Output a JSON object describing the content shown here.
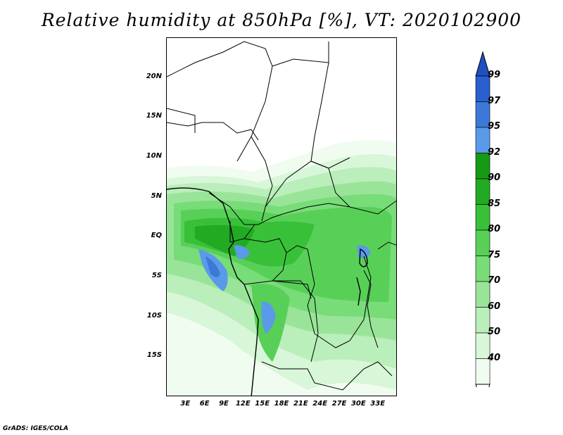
{
  "title": "Relative humidity at 850hPa [%], VT: 2020102900",
  "credit": "GrADS: IGES/COLA",
  "map": {
    "lon_range": [
      0,
      36
    ],
    "lat_range": [
      -20,
      25
    ],
    "lat_ticks": [
      {
        "value": 20,
        "label": "20N"
      },
      {
        "value": 15,
        "label": "15N"
      },
      {
        "value": 10,
        "label": "10N"
      },
      {
        "value": 5,
        "label": "5N"
      },
      {
        "value": 0,
        "label": "EQ"
      },
      {
        "value": -5,
        "label": "5S"
      },
      {
        "value": -10,
        "label": "10S"
      },
      {
        "value": -15,
        "label": "15S"
      }
    ],
    "lon_ticks": [
      {
        "value": 3,
        "label": "3E"
      },
      {
        "value": 6,
        "label": "6E"
      },
      {
        "value": 9,
        "label": "9E"
      },
      {
        "value": 12,
        "label": "12E"
      },
      {
        "value": 15,
        "label": "15E"
      },
      {
        "value": 18,
        "label": "18E"
      },
      {
        "value": 21,
        "label": "21E"
      },
      {
        "value": 24,
        "label": "24E"
      },
      {
        "value": 27,
        "label": "27E"
      },
      {
        "value": 30,
        "label": "30E"
      },
      {
        "value": 33,
        "label": "33E"
      }
    ]
  },
  "colorbar": {
    "levels": [
      {
        "label": "99",
        "color": "#2a5fd0"
      },
      {
        "label": "97",
        "color": "#3c78d8"
      },
      {
        "label": "95",
        "color": "#5a9ae8"
      },
      {
        "label": "92",
        "color": "#149a14"
      },
      {
        "label": "90",
        "color": "#22aa22"
      },
      {
        "label": "85",
        "color": "#38c038"
      },
      {
        "label": "80",
        "color": "#58d058"
      },
      {
        "label": "75",
        "color": "#78dc78"
      },
      {
        "label": "70",
        "color": "#9ae49a"
      },
      {
        "label": "60",
        "color": "#baeeba"
      },
      {
        "label": "50",
        "color": "#d8f6d8"
      },
      {
        "label": "40",
        "color": "#f0fcf0"
      }
    ],
    "top_color": "#1e50c0"
  }
}
